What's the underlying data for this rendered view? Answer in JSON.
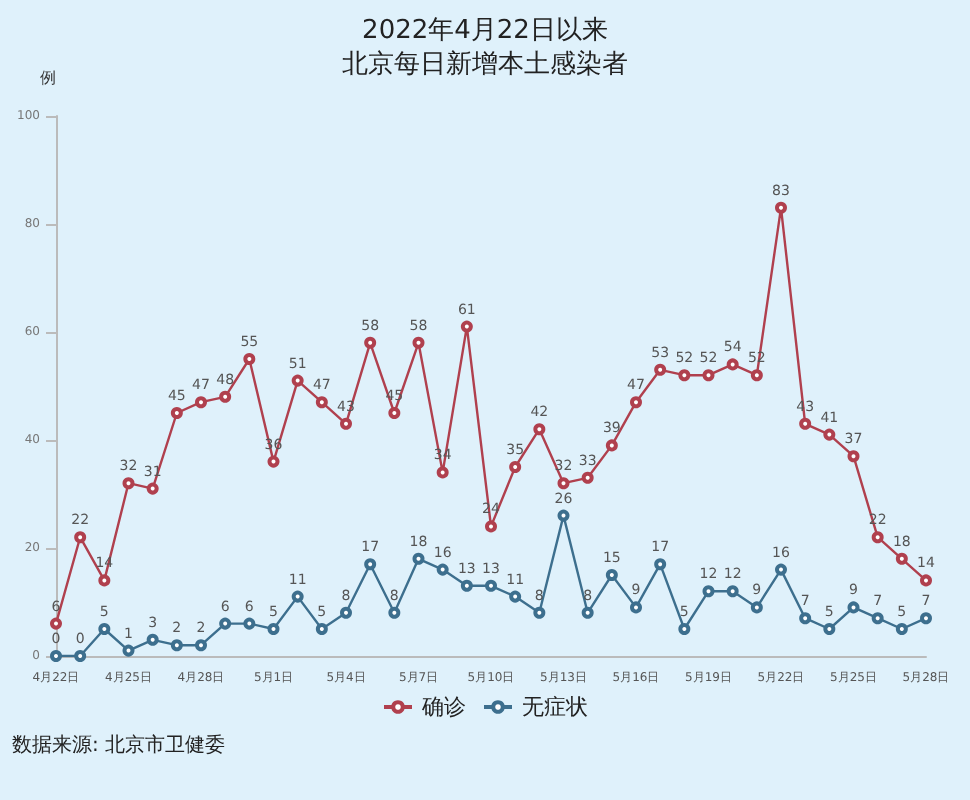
{
  "chart_data": {
    "type": "line",
    "title": "2022年4月22日以来",
    "subtitle": "北京每日新增本土感染者",
    "ylabel": "例",
    "categories": [
      "4月22日",
      null,
      null,
      "4月25日",
      null,
      null,
      "4月28日",
      null,
      null,
      "5月1日",
      null,
      null,
      "5月4日",
      null,
      null,
      "5月7日",
      null,
      null,
      "5月10日",
      null,
      null,
      "5月13日",
      null,
      null,
      "5月16日",
      null,
      null,
      "5月19日",
      null,
      null,
      "5月22日",
      null,
      null,
      "5月25日",
      null,
      null,
      "5月28日"
    ],
    "series": [
      {
        "name": "确诊",
        "color": "#b0404e",
        "values": [
          6,
          22,
          14,
          32,
          31,
          45,
          47,
          48,
          55,
          36,
          51,
          47,
          43,
          58,
          45,
          58,
          34,
          61,
          24,
          35,
          42,
          32,
          33,
          39,
          47,
          53,
          52,
          52,
          54,
          52,
          83,
          43,
          41,
          37,
          22,
          18,
          14
        ]
      },
      {
        "name": "无症状",
        "color": "#3d6f8e",
        "values": [
          0,
          0,
          5,
          1,
          3,
          2,
          2,
          6,
          6,
          5,
          11,
          5,
          8,
          17,
          8,
          18,
          16,
          13,
          13,
          11,
          8,
          26,
          8,
          15,
          9,
          17,
          5,
          12,
          12,
          9,
          16,
          7,
          5,
          9,
          7,
          5,
          7
        ]
      }
    ],
    "ylim": [
      0,
      100
    ],
    "yticks": [
      0,
      20,
      40,
      60,
      80,
      100
    ],
    "grid": false,
    "legend": "bottom",
    "marker": "circle",
    "line_style": "solid",
    "data_labels": true,
    "annotations": [
      "数据来源: 北京市卫健委"
    ]
  }
}
